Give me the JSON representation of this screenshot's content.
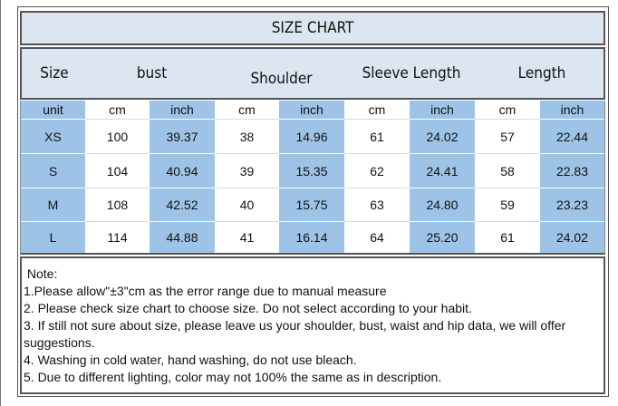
{
  "title": "SIZE CHART",
  "headers": [
    "Size",
    "bust",
    "Shoulder",
    "Sleeve Length",
    "Length"
  ],
  "units": [
    "unit",
    "cm",
    "inch",
    "cm",
    "inch",
    "cm",
    "inch",
    "cm",
    "inch"
  ],
  "rows": [
    [
      "XS",
      "100",
      "39.37",
      "38",
      "14.96",
      "61",
      "24.02",
      "57",
      "22.44"
    ],
    [
      "S",
      "104",
      "40.94",
      "39",
      "15.35",
      "62",
      "24.41",
      "58",
      "22.83"
    ],
    [
      "M",
      "108",
      "42.52",
      "40",
      "15.75",
      "63",
      "24.80",
      "59",
      "23.23"
    ],
    [
      "L",
      "114",
      "44.88",
      "41",
      "16.14",
      "64",
      "25.20",
      "61",
      "24.02"
    ]
  ],
  "notes": [
    " Note:",
    "1.Please allow\"±3\"cm as the error range due to manual measure",
    "2. Please check size chart to choose size. Do not select according to your habit.",
    "3. If still not sure about size, please leave us your shoulder, bust, waist and hip data, we will offer suggestions.",
    "4. Washing in cold water, hand washing, do not use bleach.",
    "5. Due to different lighting, color may not 100% the same as in description."
  ],
  "colors": {
    "header_bg": "#dbe6f1",
    "blue_col": "#9dc3e6",
    "border": "#555555"
  }
}
